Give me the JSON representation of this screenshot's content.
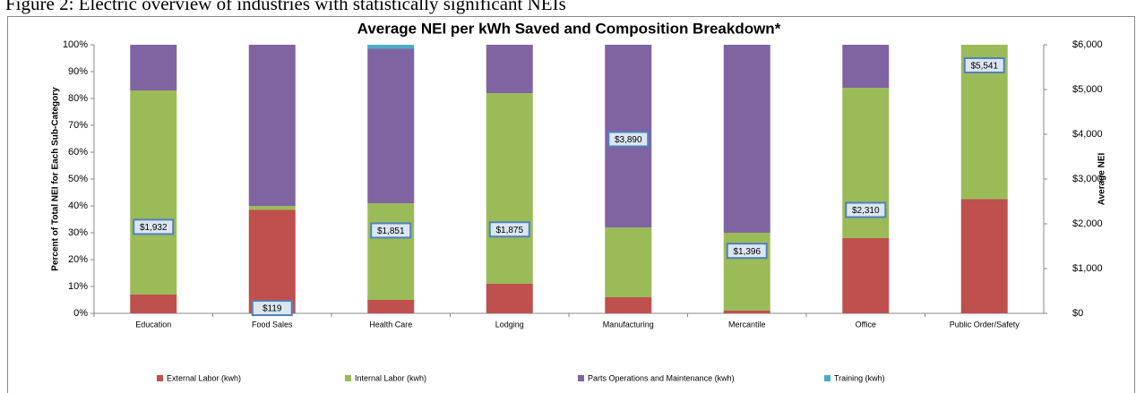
{
  "caption": "Figure 2: Electric overview of industries with statistically significant NEIs",
  "chart_data": {
    "type": "stacked_bar",
    "title": "Average NEI per kWh Saved and Composition Breakdown*",
    "ylabel": "Percent of Total NEI for Each Sub-Category",
    "y2label": "Average NEI",
    "categories": [
      "Education",
      "Food Sales",
      "Health Care",
      "Lodging",
      "Manufacturing",
      "Mercantile",
      "Office",
      "Public Order/Safety"
    ],
    "series": [
      {
        "name": "External Labor (kwh)",
        "color": "#c0504d",
        "values": [
          7,
          38.5,
          5,
          11,
          6,
          1,
          28,
          42.5
        ]
      },
      {
        "name": "Internal Labor (kwh)",
        "color": "#9bbb59",
        "values": [
          76,
          1.5,
          36,
          71,
          26,
          29,
          56,
          57.5
        ]
      },
      {
        "name": "Parts Operations and Maintenance (kwh)",
        "color": "#8064a2",
        "values": [
          17,
          60,
          57.5,
          18,
          68,
          70,
          16,
          0
        ]
      },
      {
        "name": "Training (kwh)",
        "color": "#4bacc6",
        "values": [
          0,
          0,
          1.5,
          0,
          0,
          0,
          0,
          0
        ]
      }
    ],
    "average_nei": {
      "axis": "y2",
      "values": [
        1932,
        119,
        1851,
        1875,
        3890,
        1396,
        2310,
        5541
      ],
      "value_labels": [
        "$1,932",
        "$119",
        "$1,851",
        "$1,875",
        "$3,890",
        "$1,396",
        "$2,310",
        "$5,541"
      ]
    },
    "ylim": [
      0,
      100
    ],
    "yticks": [
      {
        "value": 0,
        "label": "0%"
      },
      {
        "value": 10,
        "label": "10%"
      },
      {
        "value": 20,
        "label": "20%"
      },
      {
        "value": 30,
        "label": "30%"
      },
      {
        "value": 40,
        "label": "40%"
      },
      {
        "value": 50,
        "label": "50%"
      },
      {
        "value": 60,
        "label": "60%"
      },
      {
        "value": 70,
        "label": "70%"
      },
      {
        "value": 80,
        "label": "80%"
      },
      {
        "value": 90,
        "label": "90%"
      },
      {
        "value": 100,
        "label": "100%"
      }
    ],
    "y2lim": [
      0,
      6000
    ],
    "y2ticks": [
      {
        "value": 0,
        "label": "$0"
      },
      {
        "value": 1000,
        "label": "$1,000"
      },
      {
        "value": 2000,
        "label": "$2,000"
      },
      {
        "value": 3000,
        "label": "$3,000"
      },
      {
        "value": 4000,
        "label": "$4,000"
      },
      {
        "value": 5000,
        "label": "$5,000"
      },
      {
        "value": 6000,
        "label": "$6,000"
      }
    ],
    "legend": "bottom"
  }
}
